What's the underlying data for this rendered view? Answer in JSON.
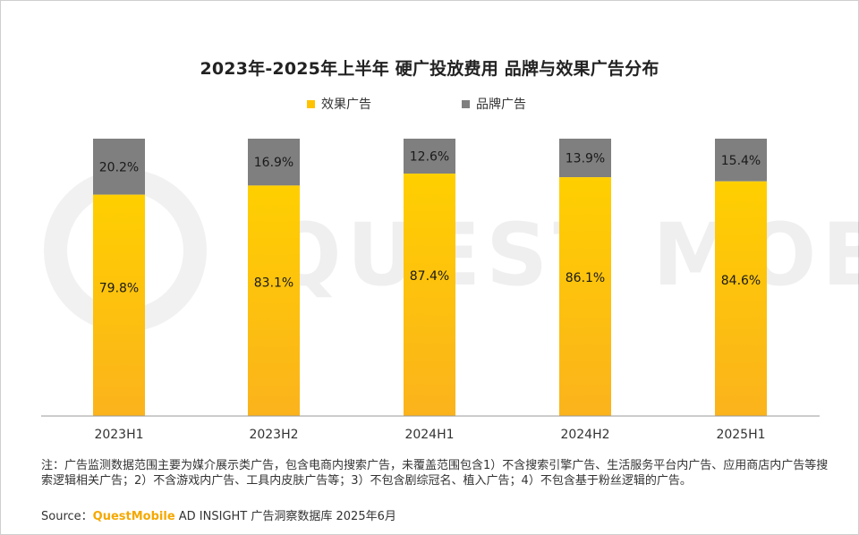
{
  "chart_data": {
    "type": "bar",
    "stacked": true,
    "percent": true,
    "title": "2023年-2025年上半年 硬广投放费用 品牌与效果广告分布",
    "categories": [
      "2023H1",
      "2023H2",
      "2024H1",
      "2024H2",
      "2025H1"
    ],
    "series": [
      {
        "name": "效果广告",
        "values": [
          79.8,
          83.1,
          87.4,
          86.1,
          84.6
        ],
        "labels": [
          "79.8%",
          "83.1%",
          "87.4%",
          "86.1%",
          "84.6%"
        ],
        "color": "#ffc200"
      },
      {
        "name": "品牌广告",
        "values": [
          20.2,
          16.9,
          12.6,
          13.9,
          15.4
        ],
        "labels": [
          "20.2%",
          "16.9%",
          "12.6%",
          "13.9%",
          "15.4%"
        ],
        "color": "#7f7f7f"
      }
    ],
    "ylim": [
      0,
      100
    ],
    "legend_position": "top-center",
    "grid": false
  },
  "footer": {
    "note": "注：广告监测数据范围主要为媒介展示类广告，包含电商内搜索广告，未覆盖范围包含1）不含搜索引擎广告、生活服务平台内广告、应用商店内广告等搜索逻辑相关广告；2）不含游戏内广告、工具内皮肤广告等；3）不包含剧综冠名、植入广告；4）不包含基于粉丝逻辑的广告。",
    "source_prefix": "Source：",
    "source_brand": "QuestMobile",
    "source_suffix": " AD INSIGHT 广告洞察数据库 2025年6月"
  },
  "watermark": {
    "text": "QUEST MOBILE"
  }
}
